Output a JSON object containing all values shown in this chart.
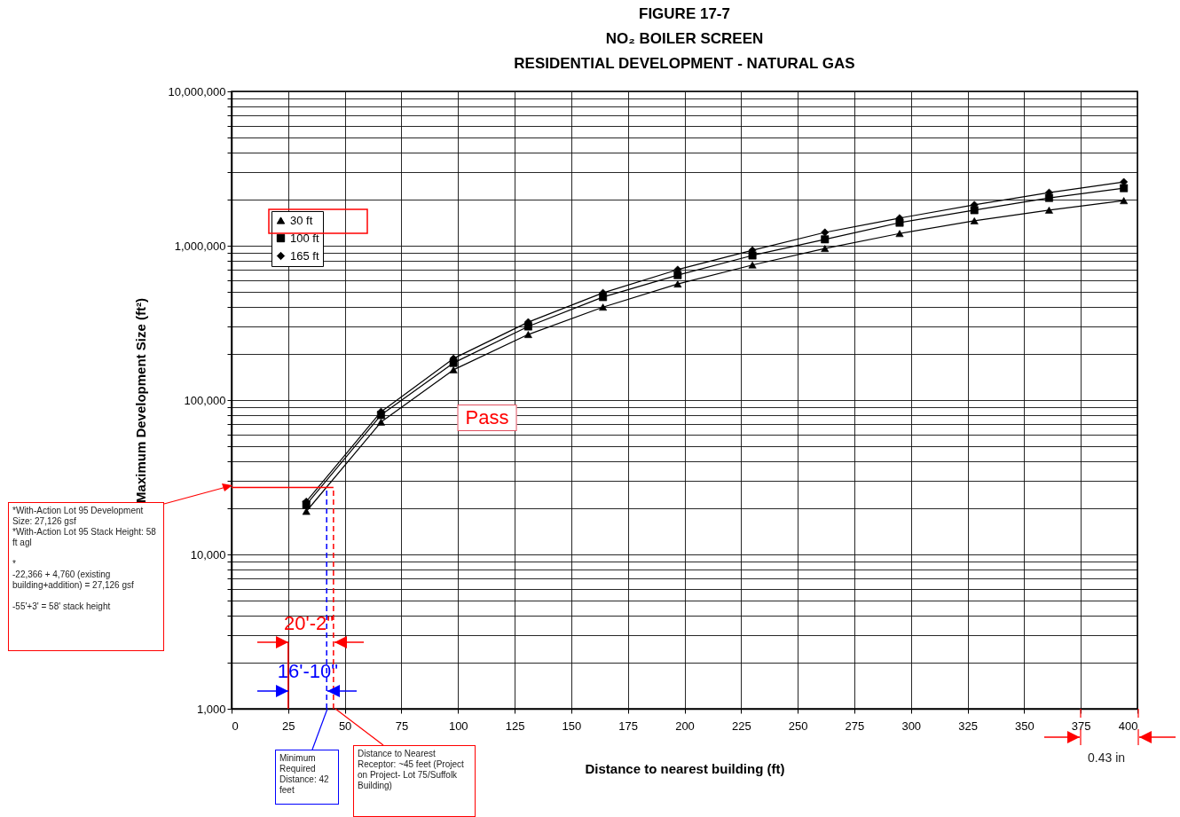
{
  "chart_data": {
    "type": "line",
    "title": "FIGURE 17-7\nNO₂ BOILER SCREEN\nRESIDENTIAL DEVELOPMENT - NATURAL GAS",
    "xlabel": "Distance to nearest building (ft)",
    "ylabel": "Maximum Development Size (ft²)",
    "log": "y",
    "grid": true,
    "legend": "top left",
    "xlim": [
      0,
      400
    ],
    "xticks": [
      0,
      25,
      50,
      75,
      100,
      125,
      150,
      175,
      200,
      225,
      250,
      275,
      300,
      325,
      350,
      375,
      400
    ],
    "ylim": [
      1000,
      10000000
    ],
    "yticks": [
      {
        "value": 1000,
        "label": "1,000"
      },
      {
        "value": 2000,
        "label": null
      },
      {
        "value": 3000,
        "label": null
      },
      {
        "value": 4000,
        "label": null
      },
      {
        "value": 5000,
        "label": null
      },
      {
        "value": 6000,
        "label": null
      },
      {
        "value": 7000,
        "label": null
      },
      {
        "value": 8000,
        "label": null
      },
      {
        "value": 9000,
        "label": null
      },
      {
        "value": 10000,
        "label": "10,000"
      },
      {
        "value": 20000,
        "label": null
      },
      {
        "value": 30000,
        "label": null
      },
      {
        "value": 40000,
        "label": null
      },
      {
        "value": 50000,
        "label": null
      },
      {
        "value": 60000,
        "label": null
      },
      {
        "value": 70000,
        "label": null
      },
      {
        "value": 80000,
        "label": null
      },
      {
        "value": 90000,
        "label": null
      },
      {
        "value": 100000,
        "label": "100,000"
      },
      {
        "value": 200000,
        "label": null
      },
      {
        "value": 300000,
        "label": null
      },
      {
        "value": 400000,
        "label": null
      },
      {
        "value": 500000,
        "label": null
      },
      {
        "value": 600000,
        "label": null
      },
      {
        "value": 700000,
        "label": null
      },
      {
        "value": 800000,
        "label": null
      },
      {
        "value": 900000,
        "label": null
      },
      {
        "value": 1000000,
        "label": "1,000,000"
      },
      {
        "value": 2000000,
        "label": null
      },
      {
        "value": 3000000,
        "label": null
      },
      {
        "value": 4000000,
        "label": null
      },
      {
        "value": 5000000,
        "label": null
      },
      {
        "value": 6000000,
        "label": null
      },
      {
        "value": 7000000,
        "label": null
      },
      {
        "value": 8000000,
        "label": null
      },
      {
        "value": 9000000,
        "label": null
      },
      {
        "value": 10000000,
        "label": "10,000,000"
      }
    ],
    "x": [
      33,
      66,
      98,
      131,
      164,
      197,
      230,
      262,
      295,
      328,
      361,
      394
    ],
    "series": [
      {
        "name": "30 ft",
        "color": "#000000",
        "marker": "triangle",
        "values": [
          19000,
          72000,
          157000,
          266000,
          400000,
          565000,
          750000,
          960000,
          1200000,
          1450000,
          1700000,
          1960000
        ]
      },
      {
        "name": "100 ft",
        "color": "#000000",
        "marker": "square",
        "values": [
          21000,
          80000,
          174000,
          300000,
          465000,
          645000,
          865000,
          1100000,
          1410000,
          1700000,
          2040000,
          2360000
        ]
      },
      {
        "name": "165 ft",
        "color": "#000000",
        "marker": "diamond",
        "values": [
          22000,
          84000,
          186000,
          320000,
          495000,
          700000,
          935000,
          1220000,
          1510000,
          1840000,
          2210000,
          2590000
        ]
      },
      {
        "type": "line",
        "color": "#0000ff",
        "line_style": "dashed",
        "marker": "none",
        "x": [
          42,
          42
        ],
        "values": [
          1000,
          27126
        ]
      },
      {
        "type": "line",
        "color": "#ff0000",
        "line_style": "dashed",
        "marker": "none",
        "x": [
          45,
          45
        ],
        "values": [
          1000,
          27126
        ]
      },
      {
        "type": "line",
        "color": "#ff0000",
        "line_style": "solid",
        "marker": "none",
        "x": [
          0,
          45
        ],
        "values": [
          27126,
          27126
        ]
      },
      {
        "type": "line",
        "color": "#ff0000",
        "line_style": "solid",
        "marker": "none",
        "x": [
          25,
          25
        ],
        "values": [
          1000,
          2700
        ]
      }
    ],
    "annotations": [
      "*With-Action Lot 95 Development Size: 27,126 gsf\n*With-Action Lot 95 Stack Height: 58 ft agl\n\n*\n-22,366 + 4,760  (existing building+addition) = 27,126 gsf\n\n-55'+3' = 58' stack height",
      "Minimum Required Distance: 42 feet",
      "Distance to Nearest Receptor: ~45 feet (Project on Project- Lot 75/Suffolk Building)",
      "0.43 in",
      "Pass",
      "20'-2\"",
      "16'-10\""
    ]
  }
}
